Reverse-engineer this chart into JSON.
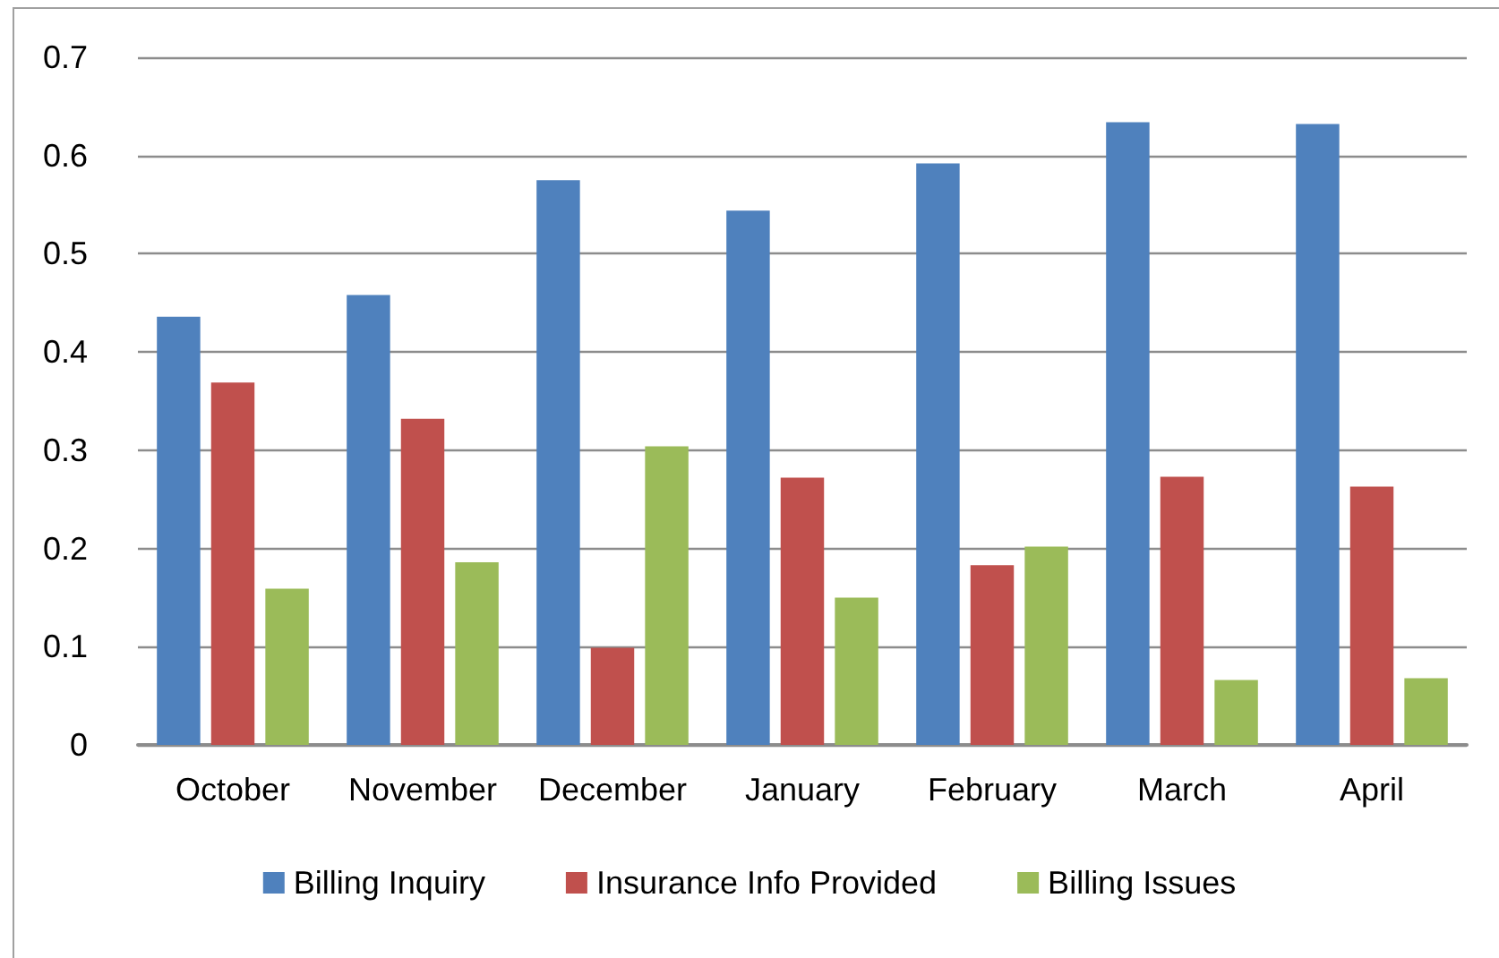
{
  "chart_data": {
    "type": "bar",
    "categories": [
      "October",
      "November",
      "December",
      "January",
      "February",
      "March",
      "April"
    ],
    "series": [
      {
        "name": "Billing Inquiry",
        "color": "#4f81bd",
        "values": [
          0.436,
          0.458,
          0.575,
          0.544,
          0.592,
          0.634,
          0.632
        ]
      },
      {
        "name": "Insurance Info Provided",
        "color": "#c0504d",
        "values": [
          0.369,
          0.332,
          0.099,
          0.272,
          0.183,
          0.273,
          0.263
        ]
      },
      {
        "name": "Billing Issues",
        "color": "#9bbb59",
        "values": [
          0.159,
          0.186,
          0.304,
          0.15,
          0.202,
          0.066,
          0.068
        ]
      }
    ],
    "ylim": [
      0,
      0.7
    ],
    "yticks": [
      0,
      0.1,
      0.2,
      0.3,
      0.4,
      0.5,
      0.6,
      0.7
    ],
    "grid": "y",
    "legend": "bottom"
  }
}
